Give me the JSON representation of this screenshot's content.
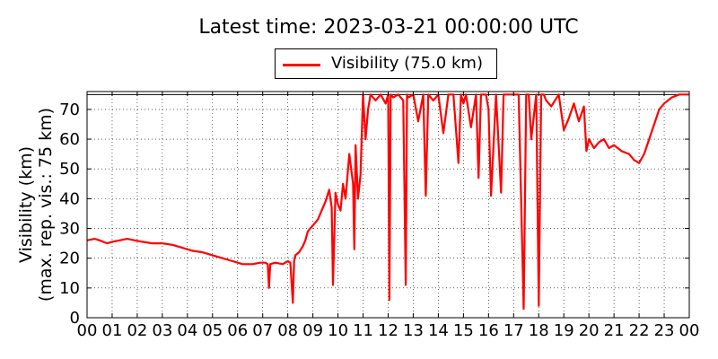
{
  "chart_data": {
    "type": "line",
    "title": "Latest time: 2023-03-21 00:00:00 UTC",
    "ylabel_line1": "Visibility (km)",
    "ylabel_line2": "(max. rep. vis.: 75 km)",
    "xlabel": "",
    "legend_position": "top-center",
    "grid": true,
    "xlim": [
      0,
      24
    ],
    "ylim": [
      0,
      76
    ],
    "x_tick_labels": [
      "00",
      "01",
      "02",
      "03",
      "04",
      "05",
      "06",
      "07",
      "08",
      "09",
      "10",
      "11",
      "12",
      "13",
      "14",
      "15",
      "16",
      "17",
      "18",
      "19",
      "20",
      "21",
      "22",
      "23",
      "00"
    ],
    "y_ticks": [
      0,
      10,
      20,
      30,
      40,
      50,
      60,
      70
    ],
    "reference_line_y": 75,
    "series": [
      {
        "name": "Visibility (75.0 km)",
        "color": "#ff0000",
        "x": [
          0,
          0.3,
          0.5,
          0.8,
          1.0,
          1.3,
          1.6,
          1.9,
          2.2,
          2.6,
          3.0,
          3.4,
          3.8,
          4.2,
          4.6,
          5.0,
          5.4,
          5.8,
          6.2,
          6.6,
          6.9,
          7.1,
          7.2,
          7.25,
          7.3,
          7.5,
          7.8,
          8.0,
          8.1,
          8.2,
          8.25,
          8.3,
          8.45,
          8.6,
          8.7,
          8.8,
          9.0,
          9.2,
          9.35,
          9.5,
          9.65,
          9.75,
          9.8,
          9.9,
          10.0,
          10.1,
          10.2,
          10.3,
          10.45,
          10.6,
          10.65,
          10.7,
          10.8,
          10.9,
          11.0,
          11.1,
          11.2,
          11.3,
          11.5,
          11.7,
          11.9,
          12.0,
          12.05,
          12.1,
          12.2,
          12.4,
          12.6,
          12.7,
          12.75,
          12.8,
          13.0,
          13.2,
          13.4,
          13.5,
          13.6,
          13.8,
          14.0,
          14.2,
          14.4,
          14.6,
          14.8,
          14.9,
          15.0,
          15.1,
          15.3,
          15.5,
          15.6,
          15.7,
          15.9,
          16.0,
          16.1,
          16.3,
          16.5,
          16.6,
          16.7,
          16.9,
          17.2,
          17.4,
          17.5,
          17.6,
          17.7,
          17.9,
          18.0,
          18.1,
          18.2,
          18.3,
          18.5,
          18.8,
          19.0,
          19.2,
          19.4,
          19.6,
          19.8,
          19.9,
          20.0,
          20.2,
          20.4,
          20.6,
          20.8,
          21.0,
          21.3,
          21.6,
          21.8,
          22.0,
          22.2,
          22.4,
          22.6,
          22.8,
          23.0,
          23.3,
          23.6,
          23.8,
          24.0
        ],
        "values": [
          26,
          26.5,
          26,
          25,
          25.5,
          26,
          26.5,
          26,
          25.5,
          25,
          25,
          24.5,
          23.5,
          22.5,
          22,
          21,
          20,
          19,
          18,
          18,
          18.5,
          18.5,
          18,
          10,
          18,
          18.5,
          18,
          19,
          18.5,
          5,
          19,
          21,
          22,
          24,
          26,
          29,
          31,
          33,
          36,
          39,
          43,
          37,
          11,
          42,
          38,
          36,
          45,
          40,
          55,
          45,
          23,
          58,
          40,
          48,
          75,
          60,
          70,
          75,
          73,
          75,
          72,
          75,
          6,
          75,
          74,
          75,
          73,
          11,
          75,
          74,
          75,
          66,
          75,
          41,
          75,
          73,
          75,
          62,
          75,
          75,
          52,
          75,
          72,
          75,
          64,
          75,
          47,
          75,
          75,
          70,
          41,
          75,
          42,
          75,
          75,
          75,
          75,
          3,
          75,
          75,
          60,
          75,
          4,
          75,
          75,
          73,
          71,
          75,
          63,
          67,
          72,
          66,
          71,
          56,
          60,
          57,
          59,
          60,
          57,
          58,
          56,
          55,
          53,
          52,
          55,
          60,
          65,
          70,
          72,
          74,
          75,
          75,
          75
        ]
      }
    ]
  }
}
